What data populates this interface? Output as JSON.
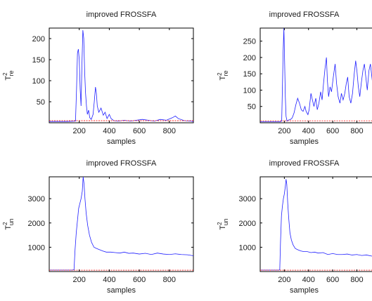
{
  "chart_data": [
    {
      "type": "line",
      "title": "improved FROSSFA",
      "xlabel": "samples",
      "ylabel_base": "T",
      "ylabel_sup": "2",
      "ylabel_sub": "re",
      "xlim": [
        0,
        960
      ],
      "ylim": [
        0,
        225
      ],
      "xticks": [
        200,
        400,
        600,
        800
      ],
      "yticks": [
        50,
        100,
        150,
        200
      ],
      "series": [
        {
          "color": "#1f1fff",
          "points": [
            [
              0,
              3
            ],
            [
              120,
              3
            ],
            [
              175,
              4
            ],
            [
              182,
              80
            ],
            [
              188,
              165
            ],
            [
              194,
              175
            ],
            [
              200,
              150
            ],
            [
              206,
              80
            ],
            [
              212,
              40
            ],
            [
              218,
              140
            ],
            [
              224,
              220
            ],
            [
              230,
              200
            ],
            [
              236,
              120
            ],
            [
              242,
              70
            ],
            [
              248,
              40
            ],
            [
              254,
              20
            ],
            [
              262,
              30
            ],
            [
              270,
              12
            ],
            [
              280,
              8
            ],
            [
              292,
              20
            ],
            [
              300,
              50
            ],
            [
              308,
              85
            ],
            [
              314,
              70
            ],
            [
              320,
              40
            ],
            [
              330,
              25
            ],
            [
              345,
              35
            ],
            [
              360,
              18
            ],
            [
              372,
              25
            ],
            [
              385,
              10
            ],
            [
              400,
              20
            ],
            [
              412,
              10
            ],
            [
              430,
              5
            ],
            [
              460,
              4
            ],
            [
              500,
              6
            ],
            [
              540,
              4
            ],
            [
              580,
              6
            ],
            [
              620,
              8
            ],
            [
              660,
              6
            ],
            [
              700,
              4
            ],
            [
              740,
              8
            ],
            [
              780,
              6
            ],
            [
              820,
              12
            ],
            [
              840,
              16
            ],
            [
              860,
              10
            ],
            [
              900,
              5
            ],
            [
              940,
              4
            ],
            [
              960,
              3
            ]
          ]
        },
        {
          "color": "#ff2a2a",
          "dashed": true,
          "points": [
            [
              0,
              5
            ],
            [
              960,
              5
            ]
          ]
        }
      ]
    },
    {
      "type": "line",
      "title": "improved FROSSFA",
      "xlabel": "samples",
      "ylabel_base": "T",
      "ylabel_sup": "2",
      "ylabel_sub": "re",
      "xlim": [
        0,
        960
      ],
      "ylim": [
        0,
        290
      ],
      "xticks": [
        200,
        400,
        600,
        800
      ],
      "yticks": [
        50,
        100,
        150,
        200,
        250
      ],
      "series": [
        {
          "color": "#1f1fff",
          "points": [
            [
              0,
              3
            ],
            [
              160,
              3
            ],
            [
              178,
              5
            ],
            [
              184,
              110
            ],
            [
              190,
              220
            ],
            [
              196,
              290
            ],
            [
              202,
              190
            ],
            [
              208,
              80
            ],
            [
              214,
              20
            ],
            [
              222,
              5
            ],
            [
              232,
              8
            ],
            [
              250,
              10
            ],
            [
              265,
              15
            ],
            [
              280,
              30
            ],
            [
              295,
              55
            ],
            [
              310,
              75
            ],
            [
              325,
              60
            ],
            [
              340,
              40
            ],
            [
              355,
              35
            ],
            [
              370,
              50
            ],
            [
              380,
              35
            ],
            [
              395,
              25
            ],
            [
              405,
              40
            ],
            [
              420,
              90
            ],
            [
              432,
              70
            ],
            [
              445,
              50
            ],
            [
              460,
              75
            ],
            [
              472,
              40
            ],
            [
              486,
              60
            ],
            [
              500,
              95
            ],
            [
              512,
              70
            ],
            [
              524,
              120
            ],
            [
              536,
              165
            ],
            [
              548,
              200
            ],
            [
              556,
              130
            ],
            [
              566,
              80
            ],
            [
              578,
              110
            ],
            [
              590,
              95
            ],
            [
              605,
              140
            ],
            [
              620,
              180
            ],
            [
              632,
              120
            ],
            [
              645,
              80
            ],
            [
              660,
              60
            ],
            [
              672,
              90
            ],
            [
              686,
              70
            ],
            [
              700,
              90
            ],
            [
              712,
              120
            ],
            [
              724,
              140
            ],
            [
              736,
              80
            ],
            [
              750,
              60
            ],
            [
              764,
              90
            ],
            [
              778,
              150
            ],
            [
              790,
              190
            ],
            [
              800,
              160
            ],
            [
              812,
              110
            ],
            [
              824,
              80
            ],
            [
              836,
              120
            ],
            [
              850,
              160
            ],
            [
              862,
              180
            ],
            [
              874,
              140
            ],
            [
              886,
              100
            ],
            [
              900,
              160
            ],
            [
              912,
              180
            ],
            [
              930,
              120
            ],
            [
              945,
              90
            ],
            [
              960,
              120
            ]
          ]
        },
        {
          "color": "#ff2a2a",
          "dashed": true,
          "points": [
            [
              0,
              6
            ],
            [
              960,
              6
            ]
          ]
        }
      ]
    },
    {
      "type": "line",
      "title": "improved FROSSFA",
      "xlabel": "samples",
      "ylabel_base": "T",
      "ylabel_sup": "2",
      "ylabel_sub": "un",
      "xlim": [
        0,
        960
      ],
      "ylim": [
        0,
        3900
      ],
      "xticks": [
        200,
        400,
        600,
        800
      ],
      "yticks": [
        1000,
        2000,
        3000
      ],
      "series": [
        {
          "color": "#1f1fff",
          "points": [
            [
              0,
              60
            ],
            [
              150,
              60
            ],
            [
              165,
              70
            ],
            [
              172,
              900
            ],
            [
              180,
              1600
            ],
            [
              188,
              2100
            ],
            [
              196,
              2600
            ],
            [
              204,
              2800
            ],
            [
              212,
              3000
            ],
            [
              220,
              3300
            ],
            [
              226,
              3900
            ],
            [
              232,
              3600
            ],
            [
              238,
              3000
            ],
            [
              246,
              2400
            ],
            [
              256,
              1900
            ],
            [
              268,
              1500
            ],
            [
              282,
              1200
            ],
            [
              298,
              1000
            ],
            [
              315,
              950
            ],
            [
              335,
              900
            ],
            [
              355,
              850
            ],
            [
              380,
              800
            ],
            [
              410,
              800
            ],
            [
              440,
              780
            ],
            [
              470,
              760
            ],
            [
              500,
              800
            ],
            [
              530,
              750
            ],
            [
              560,
              760
            ],
            [
              600,
              720
            ],
            [
              640,
              750
            ],
            [
              680,
              700
            ],
            [
              720,
              760
            ],
            [
              760,
              720
            ],
            [
              800,
              700
            ],
            [
              840,
              730
            ],
            [
              880,
              700
            ],
            [
              920,
              690
            ],
            [
              960,
              650
            ]
          ]
        },
        {
          "color": "#ff2a2a",
          "dashed": true,
          "points": [
            [
              0,
              55
            ],
            [
              960,
              55
            ]
          ]
        }
      ]
    },
    {
      "type": "line",
      "title": "improved FROSSFA",
      "xlabel": "samples",
      "ylabel_base": "T",
      "ylabel_sup": "2",
      "ylabel_sub": "un",
      "xlim": [
        0,
        960
      ],
      "ylim": [
        0,
        3900
      ],
      "xticks": [
        200,
        400,
        600,
        800
      ],
      "yticks": [
        1000,
        2000,
        3000
      ],
      "series": [
        {
          "color": "#1f1fff",
          "points": [
            [
              0,
              60
            ],
            [
              155,
              60
            ],
            [
              162,
              70
            ],
            [
              168,
              1200
            ],
            [
              176,
              2300
            ],
            [
              184,
              2700
            ],
            [
              192,
              3000
            ],
            [
              200,
              3200
            ],
            [
              208,
              3500
            ],
            [
              214,
              3800
            ],
            [
              220,
              3600
            ],
            [
              228,
              2800
            ],
            [
              236,
              2200
            ],
            [
              246,
              1600
            ],
            [
              258,
              1300
            ],
            [
              272,
              1100
            ],
            [
              290,
              950
            ],
            [
              310,
              900
            ],
            [
              335,
              850
            ],
            [
              360,
              820
            ],
            [
              390,
              820
            ],
            [
              420,
              780
            ],
            [
              450,
              800
            ],
            [
              480,
              760
            ],
            [
              520,
              780
            ],
            [
              560,
              700
            ],
            [
              600,
              740
            ],
            [
              640,
              700
            ],
            [
              680,
              700
            ],
            [
              720,
              720
            ],
            [
              760,
              680
            ],
            [
              800,
              700
            ],
            [
              840,
              660
            ],
            [
              880,
              680
            ],
            [
              920,
              640
            ],
            [
              960,
              600
            ]
          ]
        },
        {
          "color": "#ff2a2a",
          "dashed": true,
          "points": [
            [
              0,
              55
            ],
            [
              960,
              55
            ]
          ]
        }
      ]
    }
  ]
}
